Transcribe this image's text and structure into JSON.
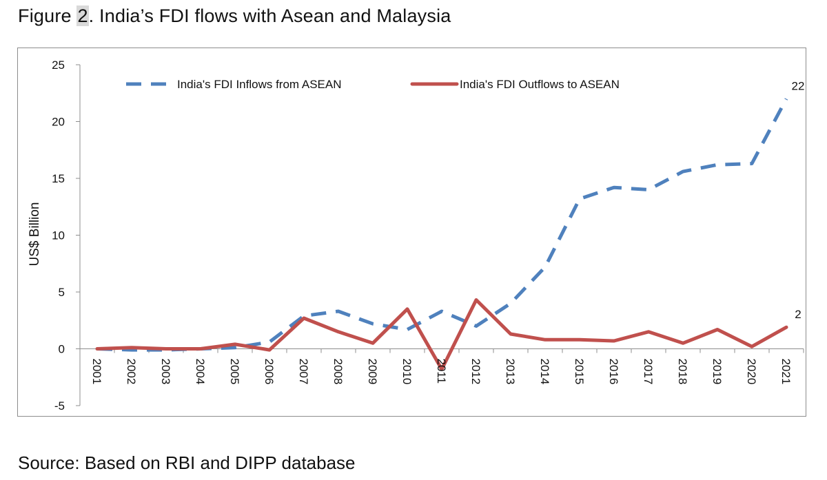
{
  "figure": {
    "title_prefix": "Figure ",
    "title_number": "2",
    "title_rest": ". India’s FDI flows with Asean and Malaysia",
    "source": "Source: Based on RBI and DIPP database"
  },
  "chart_data": {
    "type": "line",
    "title": "",
    "xlabel": "",
    "ylabel": "US$ Billion",
    "ylim": [
      -5,
      25
    ],
    "yticks": [
      -5,
      0,
      5,
      10,
      15,
      20,
      25
    ],
    "grid": false,
    "legend_position": "top",
    "categories": [
      "2001",
      "2002",
      "2003",
      "2004",
      "2005",
      "2006",
      "2007",
      "2008",
      "2009",
      "2010",
      "2011",
      "2012",
      "2013",
      "2014",
      "2015",
      "2016",
      "2017",
      "2018",
      "2019",
      "2020",
      "2021"
    ],
    "series": [
      {
        "name": "India's FDI Inflows from ASEAN",
        "color": "#4f81bd",
        "dash": "dashed",
        "values": [
          0.0,
          -0.1,
          -0.1,
          0.0,
          0.1,
          0.6,
          2.9,
          3.3,
          2.2,
          1.7,
          3.3,
          2.0,
          4.0,
          7.2,
          13.2,
          14.2,
          14.0,
          15.6,
          16.2,
          16.3,
          22.0
        ],
        "end_label": "22"
      },
      {
        "name": "India's FDI Outflows to ASEAN",
        "color": "#c0504d",
        "dash": "solid",
        "values": [
          0.0,
          0.1,
          0.0,
          0.0,
          0.4,
          -0.1,
          2.7,
          1.5,
          0.5,
          3.5,
          -1.8,
          4.3,
          1.3,
          0.8,
          0.8,
          0.7,
          1.5,
          0.5,
          1.7,
          0.2,
          1.9
        ],
        "end_label": "2"
      }
    ]
  }
}
